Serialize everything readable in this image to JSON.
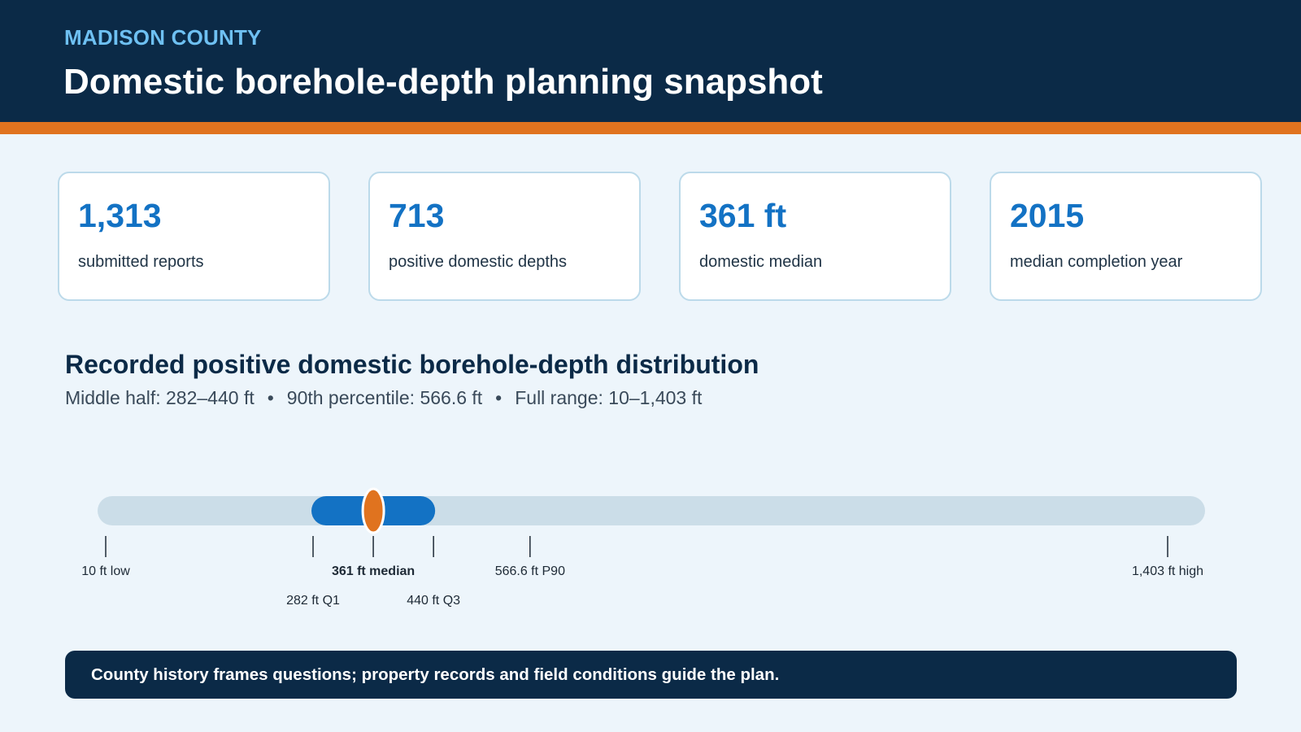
{
  "header": {
    "eyebrow": "MADISON COUNTY",
    "title": "Domestic borehole-depth planning snapshot"
  },
  "stats": [
    {
      "value": "1,313",
      "label": "submitted reports"
    },
    {
      "value": "713",
      "label": "positive domestic depths"
    },
    {
      "value": "361 ft",
      "label": "domestic median"
    },
    {
      "value": "2015",
      "label": "median completion year"
    }
  ],
  "section": {
    "title": "Recorded positive domestic borehole-depth distribution",
    "summary_parts": [
      "Middle half: 282–440 ft",
      "90th percentile: 566.6 ft",
      "Full range: 10–1,403 ft"
    ],
    "separator": "•"
  },
  "chart_data": {
    "type": "range-strip",
    "unit": "ft",
    "axis_range": [
      10,
      1403
    ],
    "colors": {
      "track": "#cbdde8",
      "iqr": "#1372c4",
      "median": "#e0731f",
      "tick": "#1e2a36"
    },
    "markers": [
      {
        "value": 10,
        "label": "10 ft low",
        "row": 1,
        "bold": false
      },
      {
        "value": 282,
        "label": "282 ft Q1",
        "row": 2,
        "bold": false
      },
      {
        "value": 361,
        "label": "361 ft median",
        "row": 1,
        "bold": true
      },
      {
        "value": 440,
        "label": "440 ft Q3",
        "row": 2,
        "bold": false
      },
      {
        "value": 566.6,
        "label": "566.6 ft P90",
        "row": 1,
        "bold": false
      },
      {
        "value": 1403,
        "label": "1,403 ft high",
        "row": 1,
        "bold": false
      }
    ],
    "iqr": [
      282,
      440
    ],
    "median": 361
  },
  "note": {
    "text": "County history frames questions; property records and field conditions guide the plan."
  }
}
